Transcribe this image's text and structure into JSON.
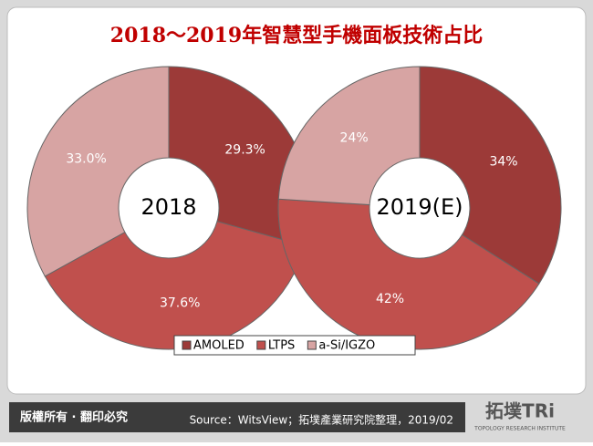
{
  "title": "2018～2019年智慧型手機面板技術占比",
  "chart_data": [
    {
      "type": "pie",
      "title": "2018",
      "categories": [
        "AMOLED",
        "LTPS",
        "a-Si/IGZO"
      ],
      "values": [
        29.3,
        37.6,
        33.0
      ],
      "value_labels": [
        "29.3%",
        "37.6%",
        "33.0%"
      ],
      "colors": [
        "#9c3a38",
        "#c0504d",
        "#d7a4a3"
      ]
    },
    {
      "type": "pie",
      "title": "2019(E)",
      "categories": [
        "AMOLED",
        "LTPS",
        "a-Si/IGZO"
      ],
      "values": [
        34,
        42,
        24
      ],
      "value_labels": [
        "34%",
        "42%",
        "24%"
      ],
      "colors": [
        "#9c3a38",
        "#c0504d",
        "#d7a4a3"
      ]
    }
  ],
  "footer": {
    "rights": "版權所有 · 翻印必究",
    "source": "Source：WitsView；拓墣產業研究院整理，2019/02",
    "logo": "拓墣TRi",
    "logo_sub": "TOPOLOGY RESEARCH INSTITUTE"
  }
}
